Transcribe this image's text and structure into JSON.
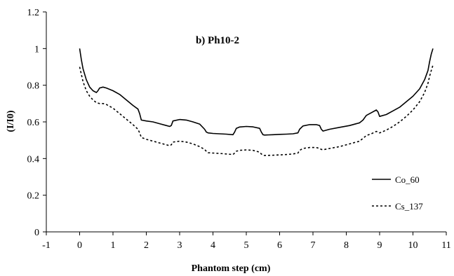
{
  "chart_data": {
    "type": "line",
    "title": "b) Ph10-2",
    "xlabel": "Phantom step (cm)",
    "ylabel": "(I/I0)",
    "xlim": [
      -1,
      11
    ],
    "ylim": [
      0,
      1.2
    ],
    "xticks": [
      "-1",
      "0",
      "1",
      "2",
      "3",
      "4",
      "5",
      "6",
      "7",
      "8",
      "9",
      "10",
      "11"
    ],
    "yticks": [
      "0",
      "0.2",
      "0.4",
      "0.6",
      "0.8",
      "1",
      "1.2"
    ],
    "grid": false,
    "legend_position": "right",
    "series": [
      {
        "name": "Co_60",
        "style": "solid",
        "color": "#000000",
        "x": [
          0.0,
          0.05,
          0.1,
          0.2,
          0.3,
          0.4,
          0.5,
          0.55,
          0.6,
          0.7,
          0.8,
          1.0,
          1.2,
          1.4,
          1.6,
          1.75,
          1.8,
          1.85,
          2.0,
          2.2,
          2.4,
          2.6,
          2.7,
          2.75,
          2.8,
          3.0,
          3.2,
          3.4,
          3.6,
          3.75,
          3.8,
          3.85,
          4.0,
          4.2,
          4.4,
          4.6,
          4.65,
          4.7,
          4.8,
          5.0,
          5.2,
          5.4,
          5.45,
          5.5,
          5.55,
          5.8,
          6.0,
          6.2,
          6.4,
          6.55,
          6.6,
          6.7,
          6.9,
          7.1,
          7.2,
          7.25,
          7.3,
          7.5,
          7.8,
          8.1,
          8.4,
          8.5,
          8.6,
          8.75,
          8.9,
          8.95,
          9.0,
          9.2,
          9.4,
          9.6,
          9.8,
          10.0,
          10.2,
          10.35,
          10.45,
          10.5,
          10.55,
          10.6
        ],
        "y": [
          1.0,
          0.94,
          0.89,
          0.83,
          0.79,
          0.77,
          0.76,
          0.77,
          0.785,
          0.79,
          0.785,
          0.77,
          0.75,
          0.72,
          0.69,
          0.67,
          0.645,
          0.61,
          0.605,
          0.6,
          0.59,
          0.58,
          0.575,
          0.58,
          0.605,
          0.613,
          0.61,
          0.6,
          0.588,
          0.56,
          0.545,
          0.54,
          0.537,
          0.535,
          0.533,
          0.53,
          0.545,
          0.565,
          0.572,
          0.575,
          0.573,
          0.565,
          0.545,
          0.53,
          0.528,
          0.53,
          0.532,
          0.533,
          0.535,
          0.54,
          0.56,
          0.578,
          0.585,
          0.585,
          0.58,
          0.56,
          0.55,
          0.56,
          0.57,
          0.58,
          0.595,
          0.61,
          0.635,
          0.65,
          0.665,
          0.655,
          0.63,
          0.64,
          0.66,
          0.68,
          0.71,
          0.74,
          0.78,
          0.83,
          0.88,
          0.93,
          0.97,
          1.0
        ]
      },
      {
        "name": "Cs_137",
        "style": "dashed",
        "color": "#000000",
        "x": [
          0.0,
          0.05,
          0.1,
          0.2,
          0.3,
          0.4,
          0.5,
          0.6,
          0.7,
          0.8,
          1.0,
          1.2,
          1.4,
          1.6,
          1.75,
          1.8,
          1.85,
          2.0,
          2.2,
          2.4,
          2.6,
          2.7,
          2.75,
          2.8,
          3.0,
          3.2,
          3.4,
          3.6,
          3.75,
          3.8,
          3.85,
          4.0,
          4.2,
          4.4,
          4.6,
          4.65,
          4.7,
          4.8,
          5.0,
          5.2,
          5.4,
          5.45,
          5.5,
          5.55,
          5.8,
          6.0,
          6.2,
          6.4,
          6.55,
          6.6,
          6.7,
          6.9,
          7.1,
          7.2,
          7.25,
          7.3,
          7.5,
          7.8,
          8.1,
          8.4,
          8.5,
          8.6,
          8.75,
          8.9,
          8.95,
          9.0,
          9.2,
          9.4,
          9.6,
          9.8,
          10.0,
          10.2,
          10.35,
          10.45,
          10.5,
          10.55,
          10.6
        ],
        "y": [
          0.9,
          0.86,
          0.82,
          0.77,
          0.74,
          0.72,
          0.705,
          0.7,
          0.7,
          0.695,
          0.675,
          0.645,
          0.615,
          0.585,
          0.56,
          0.54,
          0.515,
          0.505,
          0.495,
          0.485,
          0.475,
          0.47,
          0.475,
          0.49,
          0.495,
          0.49,
          0.48,
          0.465,
          0.45,
          0.44,
          0.432,
          0.43,
          0.428,
          0.425,
          0.422,
          0.43,
          0.44,
          0.445,
          0.447,
          0.445,
          0.435,
          0.425,
          0.418,
          0.417,
          0.418,
          0.42,
          0.422,
          0.425,
          0.43,
          0.445,
          0.455,
          0.46,
          0.46,
          0.455,
          0.45,
          0.448,
          0.455,
          0.465,
          0.48,
          0.495,
          0.51,
          0.525,
          0.535,
          0.548,
          0.545,
          0.54,
          0.555,
          0.575,
          0.6,
          0.63,
          0.665,
          0.71,
          0.76,
          0.81,
          0.85,
          0.88,
          0.91
        ]
      }
    ]
  }
}
